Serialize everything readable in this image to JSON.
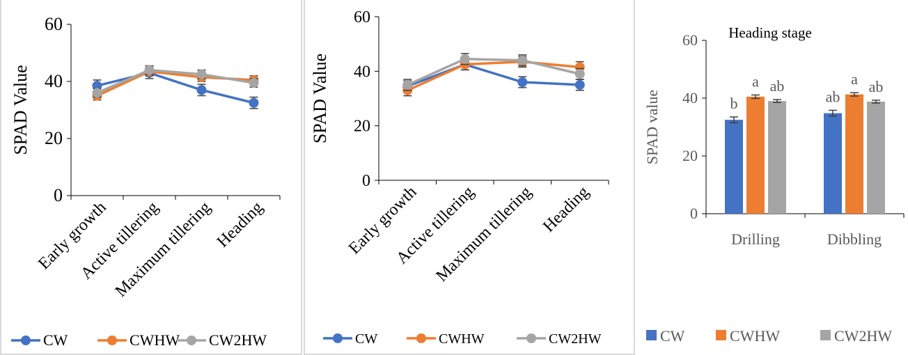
{
  "colors": {
    "CW": "#4472c4",
    "CWHW": "#ed7d31",
    "CW2HW": "#a5a5a5",
    "axis": "#000000",
    "errbar": "#404040"
  },
  "chart_data": [
    {
      "type": "line",
      "title": "",
      "xlabel": "",
      "ylabel": "SPAD Value",
      "ylim": [
        0,
        60
      ],
      "yticks": [
        "0",
        "20",
        "40",
        "60"
      ],
      "categories": [
        "Early growth",
        "Active tillering",
        "Maximum tillering",
        "Heading"
      ],
      "series": [
        {
          "name": "CW",
          "values": [
            38.5,
            43.0,
            37.0,
            32.5
          ],
          "errors": [
            2.0,
            2.0,
            2.0,
            2.0
          ]
        },
        {
          "name": "CWHW",
          "values": [
            35.0,
            43.5,
            41.5,
            40.5
          ],
          "errors": [
            1.5,
            1.5,
            1.5,
            1.5
          ]
        },
        {
          "name": "CW2HW",
          "values": [
            36.0,
            44.0,
            42.5,
            39.5
          ],
          "errors": [
            1.5,
            1.5,
            1.5,
            1.5
          ]
        }
      ],
      "legend": [
        "CW",
        "CWHW",
        "CW2HW"
      ],
      "legend_position": "bottom",
      "grid": false
    },
    {
      "type": "line",
      "title": "",
      "xlabel": "",
      "ylabel": "SPAD Value",
      "ylim": [
        0,
        60
      ],
      "yticks": [
        "0",
        "20",
        "40",
        "60"
      ],
      "categories": [
        "Early growth",
        "Active tillering",
        "Maximum tillering",
        "Heading"
      ],
      "series": [
        {
          "name": "CW",
          "values": [
            34.5,
            42.5,
            36.0,
            35.0
          ],
          "errors": [
            2.0,
            2.0,
            2.0,
            2.0
          ]
        },
        {
          "name": "CWHW",
          "values": [
            33.0,
            42.5,
            43.5,
            41.5
          ],
          "errors": [
            2.0,
            2.0,
            2.0,
            2.0
          ]
        },
        {
          "name": "CW2HW",
          "values": [
            35.0,
            44.5,
            44.0,
            39.0
          ],
          "errors": [
            2.0,
            2.0,
            2.0,
            2.0
          ]
        }
      ],
      "legend": [
        "CW",
        "CWHW",
        "CW2HW"
      ],
      "legend_position": "bottom",
      "grid": false
    },
    {
      "type": "bar",
      "title": "Heading stage",
      "xlabel": "",
      "ylabel": "SPAD value",
      "ylim": [
        0,
        60
      ],
      "yticks": [
        "0",
        "20",
        "40",
        "60"
      ],
      "categories": [
        "Drilling",
        "Dibbling"
      ],
      "series": [
        {
          "name": "CW",
          "values": [
            32.5,
            34.8
          ],
          "errors": [
            1.0,
            1.0
          ],
          "letters": [
            "b",
            "ab"
          ]
        },
        {
          "name": "CWHW",
          "values": [
            40.5,
            41.3
          ],
          "errors": [
            0.6,
            0.6
          ],
          "letters": [
            "a",
            "a"
          ]
        },
        {
          "name": "CW2HW",
          "values": [
            39.0,
            38.8
          ],
          "errors": [
            0.5,
            0.5
          ],
          "letters": [
            "ab",
            "ab"
          ]
        }
      ],
      "legend": [
        "CW",
        "CWHW",
        "CW2HW"
      ],
      "legend_position": "bottom",
      "grid": false
    }
  ]
}
